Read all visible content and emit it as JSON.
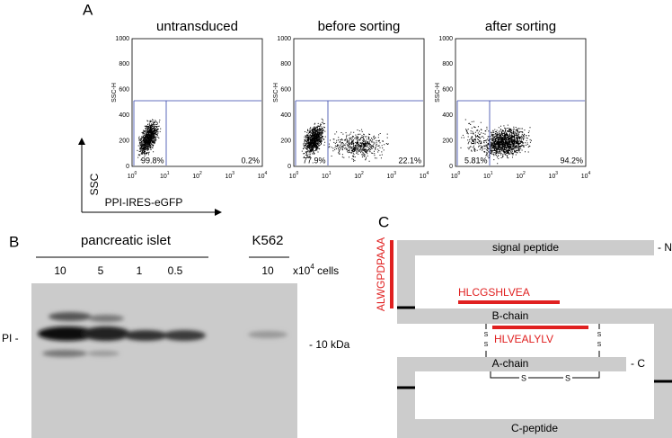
{
  "panel_a": {
    "letter": "A",
    "ylabel": "SSC-H",
    "yticks": [
      "1000",
      "800",
      "600",
      "400",
      "200",
      "0"
    ],
    "xticks": [
      {
        "base": "10",
        "exp": "0"
      },
      {
        "base": "10",
        "exp": "1"
      },
      {
        "base": "10",
        "exp": "2"
      },
      {
        "base": "10",
        "exp": "3"
      },
      {
        "base": "10",
        "exp": "4"
      }
    ],
    "plots": [
      {
        "title": "untransduced",
        "left": "99.8%",
        "right": "0.2%"
      },
      {
        "title": "before sorting",
        "left": "77.9%",
        "right": "22.1%"
      },
      {
        "title": "after sorting",
        "left": "5.81%",
        "right": "94.2%"
      }
    ],
    "y_arrow": "SSC",
    "x_arrow": "PPI-IRES-eGFP"
  },
  "panel_b": {
    "letter": "B",
    "group1": "pancreatic islet",
    "group2": "K562",
    "lanes": [
      "10",
      "5",
      "1",
      "0.5",
      "10"
    ],
    "unit_prefix": "x10",
    "unit_exp": "4",
    "unit_suffix": " cells",
    "band_label": "PI -",
    "marker": "- 10 kDa"
  },
  "panel_c": {
    "letter": "C",
    "signal_epitope": "ALWGPDPAAA",
    "signal": "signal peptide",
    "n_term": "- N",
    "b_epitope": "HLCGSHLVEA",
    "b_chain": "B-chain",
    "b_epitope2": "HLVEALYLV",
    "s": "S",
    "a_chain": "A-chain",
    "c_term": "- C",
    "c_peptide": "C-peptide"
  }
}
